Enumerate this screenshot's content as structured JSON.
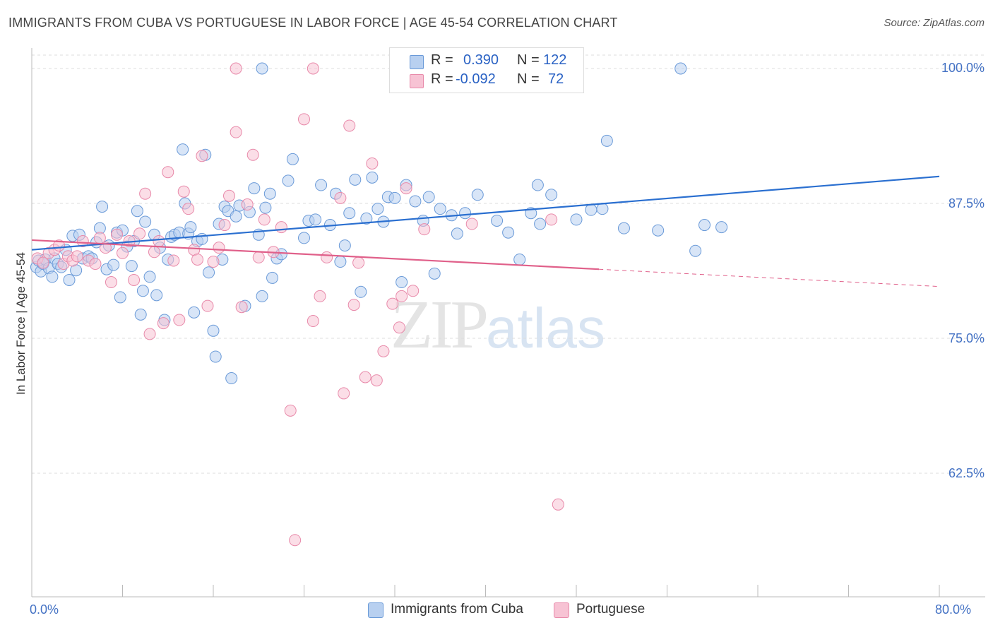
{
  "title": "IMMIGRANTS FROM CUBA VS PORTUGUESE IN LABOR FORCE | AGE 45-54 CORRELATION CHART",
  "source": "Source: ZipAtlas.com",
  "watermark": {
    "zip": "ZIP",
    "atlas": "atlas"
  },
  "legend": {
    "r_label": "R =",
    "n_label": "N =",
    "rows": [
      {
        "r": "0.390",
        "n": "122",
        "fill": "#b8d0f0",
        "stroke": "#6a9ad8"
      },
      {
        "r": "-0.092",
        "n": "72",
        "fill": "#f7c3d4",
        "stroke": "#e88aaa"
      }
    ]
  },
  "chart_data": {
    "type": "scatter",
    "title": "IMMIGRANTS FROM CUBA VS PORTUGUESE IN LABOR FORCE | AGE 45-54 CORRELATION CHART",
    "xlabel": "",
    "ylabel": "In Labor Force | Age 45-54",
    "xlim": [
      0,
      80
    ],
    "ylim": [
      50,
      101
    ],
    "x_tick_labels": [
      "0.0%",
      "80.0%"
    ],
    "y_tick_labels": [
      "100.0%",
      "87.5%",
      "75.0%",
      "62.5%"
    ],
    "y_ticks": [
      100,
      87.5,
      75,
      62.5
    ],
    "grid": true,
    "legend_position": "top-center",
    "series": [
      {
        "name": "Immigrants from Cuba",
        "color": "#6a9ad8",
        "fill": "#b8d0f0",
        "trend": {
          "x": [
            0,
            80
          ],
          "y": [
            83.2,
            90.0
          ],
          "color": "#2a6fd0"
        },
        "points": [
          [
            0.4,
            81.6
          ],
          [
            0.6,
            82.2
          ],
          [
            0.8,
            81.2
          ],
          [
            1.0,
            81.9
          ],
          [
            1.2,
            82.3
          ],
          [
            1.5,
            81.5
          ],
          [
            1.8,
            80.7
          ],
          [
            2.0,
            82.4
          ],
          [
            2.3,
            81.9
          ],
          [
            2.6,
            81.6
          ],
          [
            3.0,
            83.2
          ],
          [
            3.3,
            80.4
          ],
          [
            3.6,
            84.5
          ],
          [
            3.9,
            81.3
          ],
          [
            4.2,
            84.6
          ],
          [
            4.5,
            82.4
          ],
          [
            5.0,
            82.6
          ],
          [
            5.3,
            82.4
          ],
          [
            5.7,
            83.9
          ],
          [
            6.0,
            85.2
          ],
          [
            6.2,
            87.2
          ],
          [
            6.6,
            81.4
          ],
          [
            6.8,
            83.6
          ],
          [
            7.2,
            81.8
          ],
          [
            7.5,
            84.8
          ],
          [
            7.8,
            78.8
          ],
          [
            8.0,
            85.0
          ],
          [
            8.4,
            83.5
          ],
          [
            8.8,
            81.7
          ],
          [
            9.0,
            84.0
          ],
          [
            9.3,
            86.8
          ],
          [
            9.6,
            77.2
          ],
          [
            9.8,
            79.4
          ],
          [
            10.0,
            85.8
          ],
          [
            10.4,
            80.7
          ],
          [
            10.8,
            84.6
          ],
          [
            11.0,
            79.0
          ],
          [
            11.3,
            83.4
          ],
          [
            11.7,
            76.7
          ],
          [
            12.0,
            82.3
          ],
          [
            12.3,
            84.4
          ],
          [
            12.6,
            84.6
          ],
          [
            13.0,
            84.8
          ],
          [
            13.3,
            92.5
          ],
          [
            13.5,
            87.5
          ],
          [
            13.8,
            84.7
          ],
          [
            14.0,
            85.3
          ],
          [
            14.3,
            77.4
          ],
          [
            14.6,
            84.0
          ],
          [
            15.0,
            84.2
          ],
          [
            15.3,
            92.0
          ],
          [
            15.6,
            81.1
          ],
          [
            16.0,
            75.7
          ],
          [
            16.2,
            73.3
          ],
          [
            16.5,
            85.6
          ],
          [
            16.8,
            82.3
          ],
          [
            17.0,
            87.2
          ],
          [
            17.3,
            86.8
          ],
          [
            17.6,
            71.3
          ],
          [
            18.0,
            86.3
          ],
          [
            18.3,
            87.3
          ],
          [
            18.8,
            78.0
          ],
          [
            19.2,
            86.7
          ],
          [
            19.6,
            88.9
          ],
          [
            20.0,
            84.6
          ],
          [
            20.3,
            78.9
          ],
          [
            20.6,
            87.1
          ],
          [
            21.0,
            88.4
          ],
          [
            21.2,
            80.6
          ],
          [
            21.6,
            82.4
          ],
          [
            22.0,
            82.8
          ],
          [
            22.6,
            89.6
          ],
          [
            23.0,
            91.6
          ],
          [
            24.0,
            84.3
          ],
          [
            24.4,
            85.9
          ],
          [
            25.0,
            86.0
          ],
          [
            25.5,
            89.2
          ],
          [
            26.3,
            85.5
          ],
          [
            26.8,
            88.4
          ],
          [
            27.2,
            82.1
          ],
          [
            27.6,
            83.6
          ],
          [
            28.0,
            86.6
          ],
          [
            28.5,
            89.7
          ],
          [
            29.0,
            79.3
          ],
          [
            29.5,
            86.1
          ],
          [
            30.0,
            89.9
          ],
          [
            30.5,
            87.0
          ],
          [
            31.0,
            85.8
          ],
          [
            31.4,
            88.1
          ],
          [
            32.0,
            88.0
          ],
          [
            32.6,
            80.2
          ],
          [
            33.0,
            89.2
          ],
          [
            33.8,
            87.7
          ],
          [
            34.5,
            85.9
          ],
          [
            35.0,
            88.1
          ],
          [
            35.5,
            81.0
          ],
          [
            36.0,
            87.0
          ],
          [
            37.0,
            86.4
          ],
          [
            37.5,
            84.7
          ],
          [
            38.2,
            86.6
          ],
          [
            39.3,
            88.3
          ],
          [
            41.0,
            85.9
          ],
          [
            42.0,
            84.8
          ],
          [
            43.0,
            82.3
          ],
          [
            44.0,
            86.6
          ],
          [
            44.6,
            89.2
          ],
          [
            44.8,
            85.6
          ],
          [
            45.8,
            88.3
          ],
          [
            48.0,
            86.0
          ],
          [
            49.3,
            86.9
          ],
          [
            50.3,
            87.0
          ],
          [
            50.7,
            93.3
          ],
          [
            52.2,
            85.2
          ],
          [
            55.2,
            85.0
          ],
          [
            58.5,
            83.1
          ],
          [
            59.3,
            85.5
          ],
          [
            60.8,
            85.3
          ],
          [
            20.3,
            100.0
          ],
          [
            57.2,
            100.0
          ]
        ]
      },
      {
        "name": "Portuguese",
        "color": "#e88aaa",
        "fill": "#f7c3d4",
        "trend": {
          "x": [
            0,
            50
          ],
          "y": [
            84.1,
            81.4
          ],
          "dashed_to": [
            80,
            79.8
          ],
          "color": "#e0608a"
        },
        "points": [
          [
            0.5,
            82.4
          ],
          [
            1.0,
            82.0
          ],
          [
            1.5,
            82.9
          ],
          [
            2.0,
            83.2
          ],
          [
            2.4,
            83.6
          ],
          [
            2.8,
            81.9
          ],
          [
            3.2,
            82.6
          ],
          [
            3.6,
            82.2
          ],
          [
            4.0,
            82.6
          ],
          [
            4.5,
            84.0
          ],
          [
            5.0,
            82.2
          ],
          [
            5.6,
            81.9
          ],
          [
            6.0,
            84.3
          ],
          [
            6.5,
            83.4
          ],
          [
            7.0,
            80.2
          ],
          [
            7.5,
            84.6
          ],
          [
            8.0,
            82.9
          ],
          [
            8.6,
            84.0
          ],
          [
            9.0,
            80.4
          ],
          [
            9.5,
            84.7
          ],
          [
            10.0,
            88.4
          ],
          [
            10.4,
            75.4
          ],
          [
            10.8,
            83.0
          ],
          [
            11.2,
            84.0
          ],
          [
            11.6,
            76.4
          ],
          [
            12.0,
            90.4
          ],
          [
            12.5,
            82.2
          ],
          [
            13.0,
            76.7
          ],
          [
            13.4,
            88.6
          ],
          [
            13.8,
            87.0
          ],
          [
            14.3,
            83.2
          ],
          [
            14.6,
            82.3
          ],
          [
            15.0,
            91.9
          ],
          [
            15.5,
            78.0
          ],
          [
            16.0,
            82.1
          ],
          [
            16.5,
            83.4
          ],
          [
            17.0,
            85.5
          ],
          [
            17.4,
            88.2
          ],
          [
            18.0,
            94.1
          ],
          [
            18.5,
            77.9
          ],
          [
            19.0,
            87.4
          ],
          [
            19.5,
            92.0
          ],
          [
            20.0,
            82.5
          ],
          [
            20.5,
            86.0
          ],
          [
            21.3,
            83.0
          ],
          [
            22.0,
            85.3
          ],
          [
            22.8,
            68.3
          ],
          [
            23.2,
            56.3
          ],
          [
            24.0,
            95.3
          ],
          [
            24.8,
            76.6
          ],
          [
            25.4,
            78.9
          ],
          [
            26.0,
            82.5
          ],
          [
            27.2,
            88.0
          ],
          [
            27.5,
            69.9
          ],
          [
            28.0,
            94.7
          ],
          [
            28.4,
            78.1
          ],
          [
            28.8,
            82.0
          ],
          [
            29.4,
            71.4
          ],
          [
            30.0,
            91.2
          ],
          [
            30.4,
            71.1
          ],
          [
            31.0,
            73.8
          ],
          [
            31.8,
            78.2
          ],
          [
            32.4,
            76.0
          ],
          [
            32.6,
            78.9
          ],
          [
            33.0,
            88.9
          ],
          [
            33.6,
            79.4
          ],
          [
            34.6,
            85.1
          ],
          [
            38.8,
            85.6
          ],
          [
            45.8,
            86.0
          ],
          [
            46.4,
            59.6
          ],
          [
            18.0,
            100.0
          ],
          [
            24.8,
            100.0
          ]
        ]
      }
    ]
  },
  "bottom_legend": [
    "Immigrants from Cuba",
    "Portuguese"
  ]
}
